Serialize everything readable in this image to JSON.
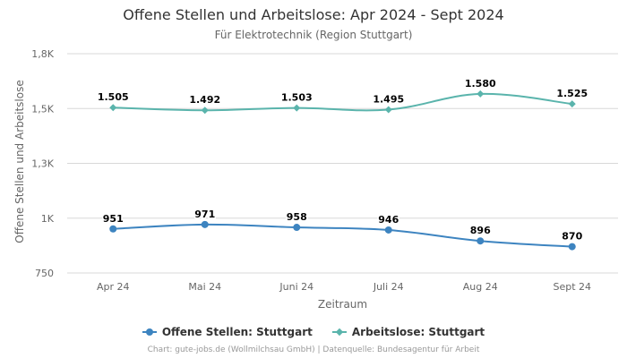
{
  "chart_data": {
    "type": "line",
    "title": "Offene Stellen und Arbeitslose: Apr 2024 - Sept 2024",
    "subtitle": "Für Elektrotechnik (Region Stuttgart)",
    "xlabel": "Zeitraum",
    "ylabel": "Offene Stellen und Arbeitslose",
    "categories": [
      "Apr 24",
      "Mai 24",
      "Juni 24",
      "Juli 24",
      "Aug 24",
      "Sept 24"
    ],
    "ylim": [
      750,
      1800
    ],
    "yticks": [
      750,
      1000,
      1250,
      1500,
      1800
    ],
    "ytick_labels": [
      "750",
      "1K",
      "1,3K",
      "1,5K",
      "1,8K"
    ],
    "grid": true,
    "legend_position": "bottom",
    "series": [
      {
        "name": "Offene Stellen: Stuttgart",
        "color": "#3d84c0",
        "marker": "circle",
        "values": [
          951,
          971,
          958,
          946,
          896,
          870
        ],
        "labels": [
          "951",
          "971",
          "958",
          "946",
          "896",
          "870"
        ]
      },
      {
        "name": "Arbeitslose: Stuttgart",
        "color": "#5ab4ac",
        "marker": "diamond",
        "values": [
          1505,
          1492,
          1503,
          1495,
          1580,
          1525
        ],
        "labels": [
          "1.505",
          "1.492",
          "1.503",
          "1.495",
          "1.580",
          "1.525"
        ]
      }
    ]
  },
  "credits": "Chart: gute-jobs.de (Wollmilchsau GmbH) | Datenquelle: Bundesagentur für Arbeit"
}
